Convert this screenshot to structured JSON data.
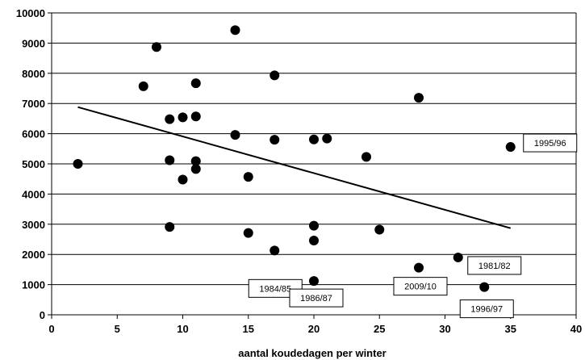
{
  "chart_data": {
    "type": "scatter",
    "title": "",
    "xlabel": "aantal koudedagen per winter",
    "ylabel": "",
    "xlim": [
      0,
      40
    ],
    "ylim": [
      0,
      10000
    ],
    "x_ticks": [
      0,
      5,
      10,
      15,
      20,
      25,
      30,
      35,
      40
    ],
    "y_ticks": [
      0,
      1000,
      2000,
      3000,
      4000,
      5000,
      6000,
      7000,
      8000,
      9000,
      10000
    ],
    "x_tick_labels": [
      "0",
      "5",
      "10",
      "15",
      "20",
      "25",
      "30",
      "35",
      "40"
    ],
    "y_tick_labels": [
      "0",
      "1000",
      "2000",
      "3000",
      "4000",
      "5000",
      "6000",
      "7000",
      "8000",
      "9000",
      "10000"
    ],
    "grid": "horizontal",
    "points": [
      {
        "x": 2,
        "y": 5000
      },
      {
        "x": 7,
        "y": 7570
      },
      {
        "x": 8,
        "y": 8870
      },
      {
        "x": 9,
        "y": 6480
      },
      {
        "x": 9,
        "y": 5120
      },
      {
        "x": 9,
        "y": 2910
      },
      {
        "x": 10,
        "y": 6540
      },
      {
        "x": 10,
        "y": 4480
      },
      {
        "x": 11,
        "y": 7670
      },
      {
        "x": 11,
        "y": 6570
      },
      {
        "x": 11,
        "y": 5090
      },
      {
        "x": 11,
        "y": 4830
      },
      {
        "x": 14,
        "y": 9430
      },
      {
        "x": 14,
        "y": 5960
      },
      {
        "x": 15,
        "y": 4570
      },
      {
        "x": 15,
        "y": 2710
      },
      {
        "x": 17,
        "y": 7930
      },
      {
        "x": 17,
        "y": 5800
      },
      {
        "x": 17,
        "y": 2130
      },
      {
        "x": 20,
        "y": 5810
      },
      {
        "x": 20,
        "y": 2950
      },
      {
        "x": 20,
        "y": 2460
      },
      {
        "x": 20,
        "y": 1120
      },
      {
        "x": 21,
        "y": 5840
      },
      {
        "x": 24,
        "y": 5230
      },
      {
        "x": 25,
        "y": 2820
      },
      {
        "x": 28,
        "y": 7190
      },
      {
        "x": 28,
        "y": 1560
      },
      {
        "x": 31,
        "y": 1900
      },
      {
        "x": 33,
        "y": 920
      },
      {
        "x": 35,
        "y": 5560
      }
    ],
    "trendline": {
      "x": [
        2,
        35
      ],
      "y": [
        6880,
        2870
      ]
    },
    "annotations": [
      {
        "text": "1995/96",
        "x": 35,
        "y": 5560
      },
      {
        "text": "1984/85",
        "x": 17,
        "y": 2130
      },
      {
        "text": "1986/87",
        "x": 20,
        "y": 1120
      },
      {
        "text": "2009/10",
        "x": 28,
        "y": 1560
      },
      {
        "text": "1981/82",
        "x": 31,
        "y": 1900
      },
      {
        "text": "1996/97",
        "x": 33,
        "y": 920
      }
    ]
  }
}
